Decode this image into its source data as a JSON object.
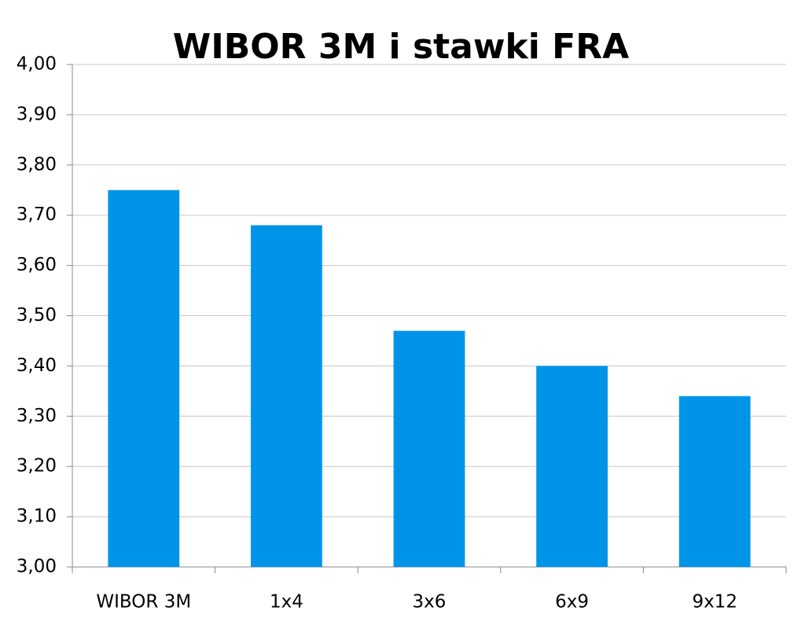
{
  "chart_data": {
    "type": "bar",
    "title": "WIBOR 3M i stawki FRA",
    "categories": [
      "WIBOR 3M",
      "1x4",
      "3x6",
      "6x9",
      "9x12"
    ],
    "values": [
      3.75,
      3.68,
      3.47,
      3.4,
      3.34
    ],
    "color": "#0094e8",
    "ylim": [
      3,
      4
    ],
    "yticks": [
      {
        "value": 3.0,
        "label": "3,00"
      },
      {
        "value": 3.1,
        "label": "3,10"
      },
      {
        "value": 3.2,
        "label": "3,20"
      },
      {
        "value": 3.3,
        "label": "3,30"
      },
      {
        "value": 3.4,
        "label": "3,40"
      },
      {
        "value": 3.5,
        "label": "3,50"
      },
      {
        "value": 3.6,
        "label": "3,60"
      },
      {
        "value": 3.7,
        "label": "3,70"
      },
      {
        "value": 3.8,
        "label": "3,80"
      },
      {
        "value": 3.9,
        "label": "3,90"
      },
      {
        "value": 4.0,
        "label": "4,00"
      }
    ],
    "grid": true
  }
}
